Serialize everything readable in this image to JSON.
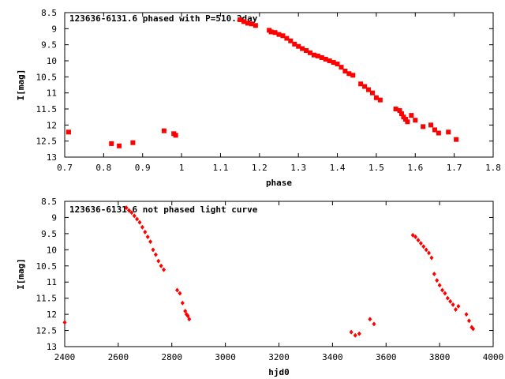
{
  "chart_data": [
    {
      "type": "scatter",
      "title": "123636-6131.6 phased with P=510.3day",
      "xlabel": "phase",
      "ylabel": "I[mag]",
      "xlim": [
        0.7,
        1.8
      ],
      "ylim": [
        13,
        8.5
      ],
      "y_inverted": true,
      "xticks": [
        "0.7",
        "0.8",
        "0.9",
        "1",
        "1.1",
        "1.2",
        "1.3",
        "1.4",
        "1.5",
        "1.6",
        "1.7",
        "1.8"
      ],
      "yticks": [
        "8.5",
        "9",
        "9.5",
        "10",
        "10.5",
        "11",
        "11.5",
        "12",
        "12.5",
        "13"
      ],
      "marker_color": "#ff0000",
      "series": [
        {
          "x": [
            0.71,
            0.82,
            0.84,
            0.875,
            0.955,
            0.98,
            0.985,
            1.15,
            1.16,
            1.17,
            1.18,
            1.19,
            1.225,
            1.23,
            1.24,
            1.25,
            1.26,
            1.27,
            1.28,
            1.29,
            1.3,
            1.31,
            1.32,
            1.33,
            1.34,
            1.35,
            1.36,
            1.37,
            1.38,
            1.39,
            1.4,
            1.41,
            1.42,
            1.43,
            1.44,
            1.46,
            1.47,
            1.48,
            1.49,
            1.5,
            1.51,
            1.55,
            1.56,
            1.565,
            1.57,
            1.575,
            1.58,
            1.59,
            1.6,
            1.62,
            1.64,
            1.65,
            1.66,
            1.685,
            1.705
          ],
          "y": [
            12.22,
            12.58,
            12.65,
            12.55,
            12.18,
            12.27,
            12.32,
            8.72,
            8.78,
            8.83,
            8.85,
            8.9,
            9.05,
            9.1,
            9.12,
            9.18,
            9.22,
            9.3,
            9.38,
            9.48,
            9.55,
            9.62,
            9.68,
            9.75,
            9.82,
            9.85,
            9.9,
            9.95,
            10.0,
            10.05,
            10.1,
            10.2,
            10.32,
            10.4,
            10.45,
            10.72,
            10.8,
            10.9,
            11.0,
            11.15,
            11.22,
            11.5,
            11.55,
            11.65,
            11.75,
            11.82,
            11.9,
            11.7,
            11.85,
            12.05,
            12.0,
            12.15,
            12.25,
            12.22,
            12.45
          ]
        }
      ]
    },
    {
      "type": "scatter",
      "title": "123636-6131.6 not phased light curve",
      "xlabel": "hjd0",
      "ylabel": "I[mag]",
      "xlim": [
        2400,
        4000
      ],
      "ylim": [
        13,
        8.5
      ],
      "y_inverted": true,
      "xticks": [
        "2400",
        "2600",
        "2800",
        "3000",
        "3200",
        "3400",
        "3600",
        "3800",
        "4000"
      ],
      "yticks": [
        "8.5",
        "9",
        "9.5",
        "10",
        "10.5",
        "11",
        "11.5",
        "12",
        "12.5",
        "13"
      ],
      "marker_color": "#ff0000",
      "series": [
        {
          "x": [
            2400,
            2630,
            2640,
            2650,
            2660,
            2670,
            2680,
            2690,
            2700,
            2710,
            2720,
            2730,
            2740,
            2750,
            2760,
            2770,
            2820,
            2830,
            2840,
            2850,
            2855,
            2860,
            2865,
            3470,
            3485,
            3500,
            3540,
            3555,
            3700,
            3710,
            3720,
            3730,
            3740,
            3750,
            3760,
            3770,
            3780,
            3790,
            3800,
            3810,
            3820,
            3830,
            3840,
            3850,
            3860,
            3870,
            3900,
            3910,
            3920,
            3925
          ],
          "y": [
            12.25,
            8.7,
            8.78,
            8.85,
            8.95,
            9.05,
            9.15,
            9.3,
            9.45,
            9.6,
            9.75,
            10.0,
            10.15,
            10.35,
            10.5,
            10.62,
            11.25,
            11.35,
            11.65,
            11.9,
            12.0,
            12.05,
            12.15,
            12.55,
            12.65,
            12.6,
            12.15,
            12.3,
            9.55,
            9.6,
            9.7,
            9.8,
            9.9,
            10.0,
            10.1,
            10.25,
            10.75,
            10.95,
            11.1,
            11.25,
            11.35,
            11.5,
            11.6,
            11.7,
            11.85,
            11.75,
            12.0,
            12.2,
            12.4,
            12.45
          ]
        }
      ]
    }
  ]
}
